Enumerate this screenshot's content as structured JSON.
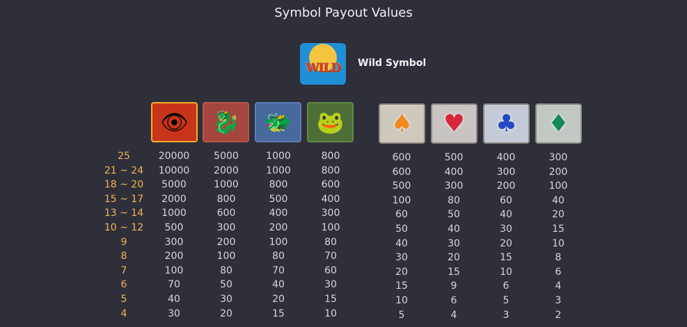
{
  "title": "Symbol Payout Values",
  "wild": {
    "label": "Wild Symbol",
    "icon_text": "WILD",
    "icon": "wild-egg-icon"
  },
  "high_symbols": [
    {
      "icon": "dragon-eye-icon",
      "glyph": "👁",
      "bg": "#c8341a",
      "border": "#f3b12a"
    },
    {
      "icon": "red-dragon-icon",
      "glyph": "🐉",
      "bg": "#a4463e",
      "border": "#b9574d"
    },
    {
      "icon": "blue-dragon-icon",
      "glyph": "🐲",
      "bg": "#48699d",
      "border": "#5d7fb4"
    },
    {
      "icon": "green-frog-icon",
      "glyph": "🐸",
      "bg": "#4d6e37",
      "border": "#638a47"
    }
  ],
  "low_symbols": [
    {
      "icon": "spade-icon",
      "glyph": "♠",
      "color": "#f08a1c",
      "bg": "#cfc9bd"
    },
    {
      "icon": "heart-icon",
      "glyph": "♥",
      "color": "#d8273a",
      "bg": "#c9c4c2"
    },
    {
      "icon": "club-icon",
      "glyph": "♣",
      "color": "#2449c6",
      "bg": "#c4cad6"
    },
    {
      "icon": "diamond-icon",
      "glyph": "♦",
      "color": "#138a5a",
      "bg": "#c2c9c4"
    }
  ],
  "counts": [
    "25",
    "21 ~ 24",
    "18 ~ 20",
    "15 ~ 17",
    "13 ~ 14",
    "10 ~ 12",
    "9",
    "8",
    "7",
    "6",
    "5",
    "4"
  ],
  "high_payouts": [
    [
      "20000",
      "5000",
      "1000",
      "800"
    ],
    [
      "10000",
      "2000",
      "1000",
      "800"
    ],
    [
      "5000",
      "1000",
      "800",
      "600"
    ],
    [
      "2000",
      "800",
      "500",
      "400"
    ],
    [
      "1000",
      "600",
      "400",
      "300"
    ],
    [
      "500",
      "300",
      "200",
      "100"
    ],
    [
      "300",
      "200",
      "100",
      "80"
    ],
    [
      "200",
      "100",
      "80",
      "70"
    ],
    [
      "100",
      "80",
      "70",
      "60"
    ],
    [
      "70",
      "50",
      "40",
      "30"
    ],
    [
      "40",
      "30",
      "20",
      "15"
    ],
    [
      "30",
      "20",
      "15",
      "10"
    ]
  ],
  "low_payouts": [
    [
      "600",
      "500",
      "400",
      "300"
    ],
    [
      "600",
      "400",
      "300",
      "200"
    ],
    [
      "500",
      "300",
      "200",
      "100"
    ],
    [
      "100",
      "80",
      "60",
      "40"
    ],
    [
      "60",
      "50",
      "40",
      "20"
    ],
    [
      "50",
      "40",
      "30",
      "15"
    ],
    [
      "40",
      "30",
      "20",
      "10"
    ],
    [
      "30",
      "20",
      "15",
      "8"
    ],
    [
      "20",
      "15",
      "10",
      "6"
    ],
    [
      "15",
      "9",
      "6",
      "4"
    ],
    [
      "10",
      "6",
      "5",
      "3"
    ],
    [
      "5",
      "4",
      "3",
      "2"
    ]
  ],
  "colors": {
    "background": "#2f2f3a",
    "count_label": "#f0b556",
    "value": "#d8d8d8"
  }
}
